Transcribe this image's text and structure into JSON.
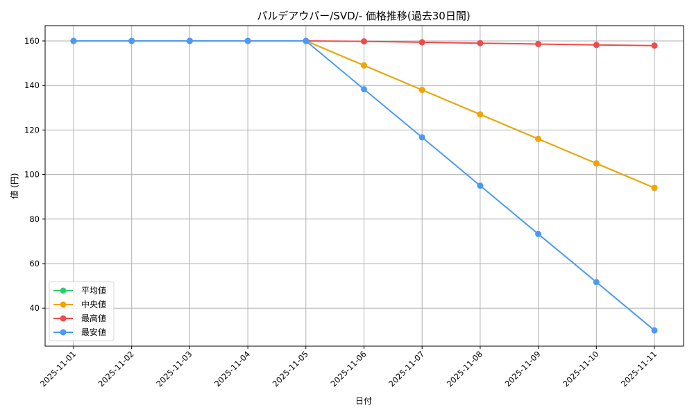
{
  "chart_data": {
    "type": "line",
    "title": "パルデアウパー/SVD/- 価格推移(過去30日間)",
    "xlabel": "日付",
    "ylabel": "値 (円)",
    "categories": [
      "2025-11-01",
      "2025-11-02",
      "2025-11-03",
      "2025-11-04",
      "2025-11-05",
      "2025-11-06",
      "2025-11-07",
      "2025-11-08",
      "2025-11-09",
      "2025-11-10",
      "2025-11-11"
    ],
    "yticks": [
      40,
      60,
      80,
      100,
      120,
      140,
      160
    ],
    "ylim": [
      23.5,
      166
    ],
    "grid": true,
    "legend_position": "lower left",
    "series": [
      {
        "name": "平均値",
        "color": "#2ecc71",
        "values": [
          160,
          160,
          160,
          160,
          160,
          149,
          138,
          127,
          116,
          105,
          94
        ]
      },
      {
        "name": "中央値",
        "color": "#f5a300",
        "values": [
          160,
          160,
          160,
          160,
          160,
          149,
          138,
          127,
          116,
          105,
          94
        ]
      },
      {
        "name": "最高値",
        "color": "#f04a4a",
        "values": [
          160,
          160,
          160,
          160,
          160,
          159.8,
          159.4,
          159.0,
          158.6,
          158.2,
          157.9
        ]
      },
      {
        "name": "最安値",
        "color": "#4a9af5",
        "values": [
          160,
          160,
          160,
          160,
          160,
          138.3,
          116.7,
          95.0,
          73.3,
          51.7,
          30.0
        ]
      }
    ]
  }
}
